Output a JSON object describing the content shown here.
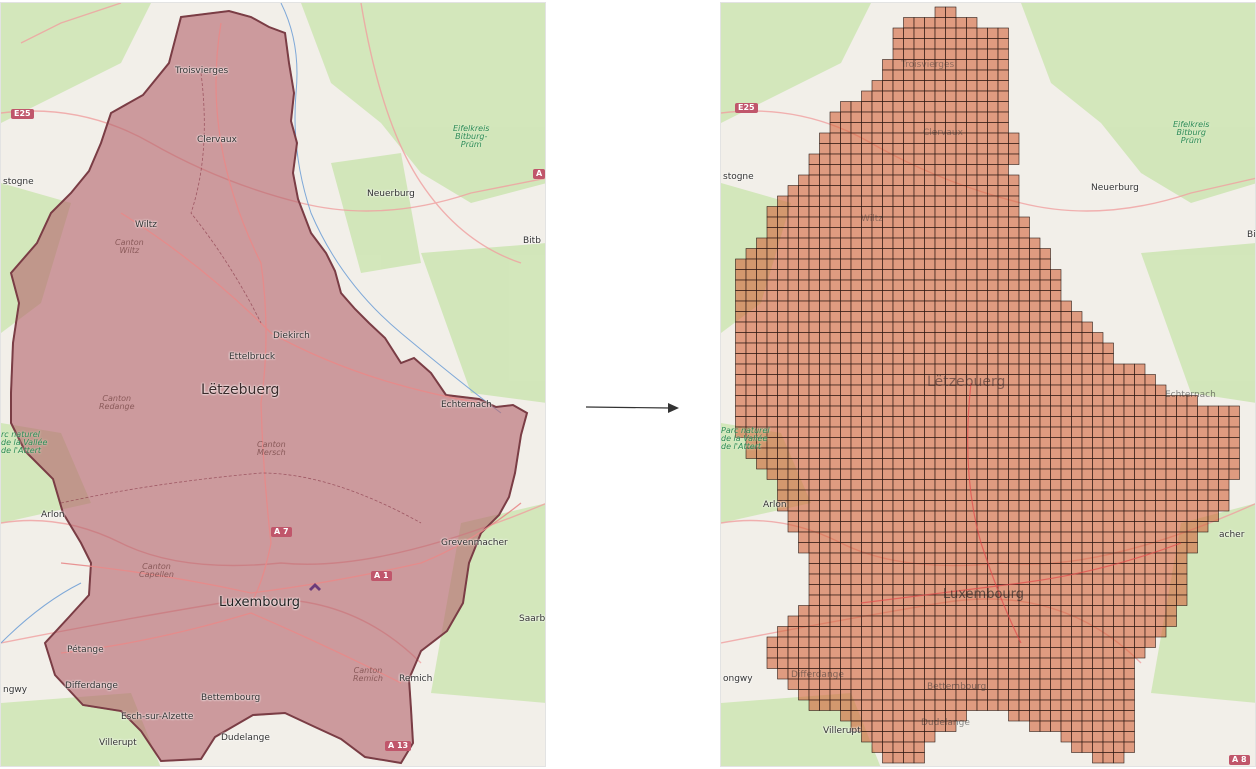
{
  "left_map": {
    "labels": {
      "troisvierges": "Troisvierges",
      "clervaux": "Clervaux",
      "wiltz": "Wiltz",
      "canton_wiltz": "Canton\nWiltz",
      "diekirch": "Diekirch",
      "ettelbruck": "Ettelbruck",
      "letzebuerg": "Lëtzebuerg",
      "canton_redange": "Canton\nRedange",
      "canton_mersch": "Canton\nMersch",
      "echternach": "Echternach",
      "arlon": "Arlon",
      "grevenmacher": "Grevenmacher",
      "canton_capellen": "Canton\nCapellen",
      "luxembourg": "Luxembourg",
      "petange": "Pétange",
      "differdange": "Differdange",
      "bettembourg": "Bettembourg",
      "esch": "Esch-sur-Alzette",
      "dudelange": "Dudelange",
      "villerupt": "Villerupt",
      "remich": "Remich",
      "canton_remich": "Canton\nRemich",
      "neuerburg": "Neuerburg",
      "eifelkreis": "Eifelkreis\nBitburg-\nPrüm",
      "bastogne": "stogne",
      "longwy": "ngwy",
      "bitburg": "Bitb",
      "saarburg": "Saarb",
      "park": "rc naturel\nde la Vallée\nde l'Attert"
    },
    "roads": {
      "e25": "E25",
      "a7": "A 7",
      "a1": "A 1",
      "a13": "A 13",
      "a_edge": "A"
    }
  },
  "right_map": {
    "labels": {
      "neuerburg": "Neuerburg",
      "eifelkreis": "Eifelkreis\nBitburg\nPrüm",
      "bastogne": "stogne",
      "arlon": "Arlon",
      "longwy": "ongwy",
      "villerupt": "Villerupt",
      "park": "Parc naturel\nde la Vallée\nde l'Attert",
      "letzebuerg": "Lëtzebuerg",
      "luxembourg": "Luxembourg",
      "echternach": "Echternach",
      "grevenmacher": "acher",
      "bitburg": "Bi",
      "wiltz": "Wiltz",
      "clervaux": "Clervaux",
      "troisvierges": "Troisvierges",
      "differdange": "Differdange",
      "bettembourg": "Bettembourg",
      "dudelange": "Dudelange"
    },
    "roads": {
      "e25": "E25",
      "a8": "A 8"
    }
  },
  "colors": {
    "map_green": "#cfe6b6",
    "map_land": "#f2efe9",
    "polygon_fill": "#b5666d",
    "grid_fill": "#d4683f",
    "grid_line": "#2a1a14"
  }
}
